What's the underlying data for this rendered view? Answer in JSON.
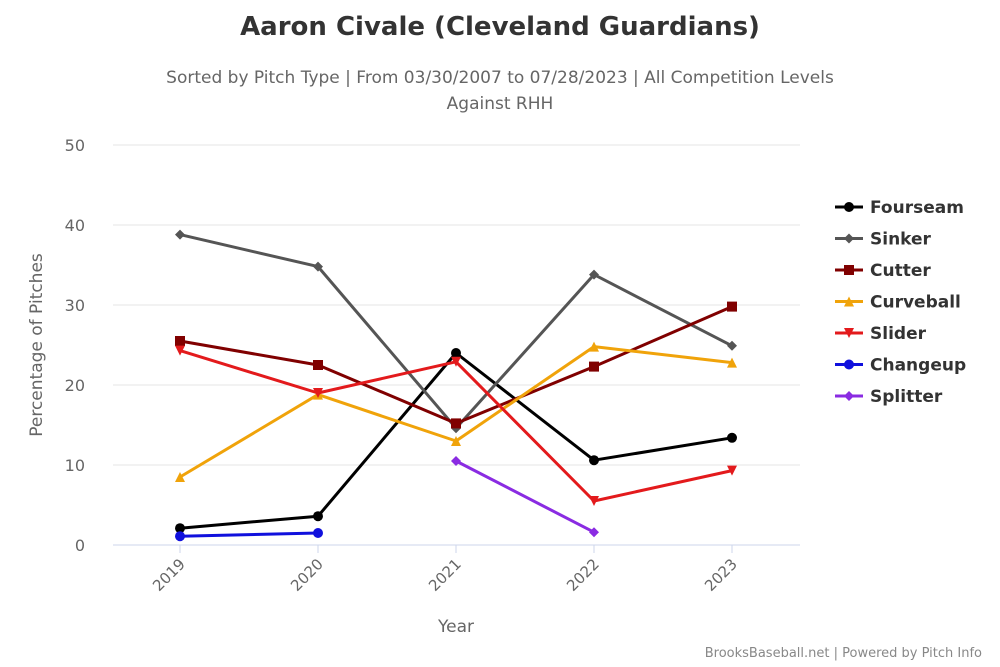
{
  "chart_data": {
    "type": "line",
    "title": "Aaron Civale (Cleveland Guardians)",
    "subtitle": [
      "Sorted by Pitch Type | From 03/30/2007 to 07/28/2023 | All Competition Levels",
      "Against RHH"
    ],
    "xlabel": "Year",
    "ylabel": "Percentage of Pitches",
    "categories": [
      "2019",
      "2020",
      "2021",
      "2022",
      "2023"
    ],
    "ylim": [
      0,
      50
    ],
    "yticks": [
      "0",
      "10",
      "20",
      "30",
      "40",
      "50"
    ],
    "grid": true,
    "legend_placement": "right",
    "series": [
      {
        "name": "Fourseam",
        "color": "#000000",
        "marker": "circle",
        "values": [
          2.1,
          3.6,
          24.0,
          10.6,
          13.4
        ]
      },
      {
        "name": "Sinker",
        "color": "#555555",
        "marker": "diamond",
        "values": [
          38.8,
          34.8,
          14.6,
          33.8,
          24.9
        ]
      },
      {
        "name": "Cutter",
        "color": "#800000",
        "marker": "square",
        "values": [
          25.5,
          22.5,
          15.2,
          22.3,
          29.8
        ]
      },
      {
        "name": "Curveball",
        "color": "#f0a30a",
        "marker": "triangle",
        "values": [
          8.5,
          18.8,
          13.0,
          24.8,
          22.8
        ]
      },
      {
        "name": "Slider",
        "color": "#e31a1c",
        "marker": "triangle-down",
        "values": [
          24.3,
          19.0,
          22.9,
          5.5,
          9.3
        ]
      },
      {
        "name": "Changeup",
        "color": "#1010dd",
        "marker": "circle",
        "values": [
          1.1,
          1.5,
          null,
          null,
          null
        ]
      },
      {
        "name": "Splitter",
        "color": "#8a2be2",
        "marker": "diamond",
        "values": [
          null,
          null,
          10.5,
          1.6,
          null
        ]
      }
    ]
  },
  "credit": "BrooksBaseball.net | Powered by Pitch Info"
}
